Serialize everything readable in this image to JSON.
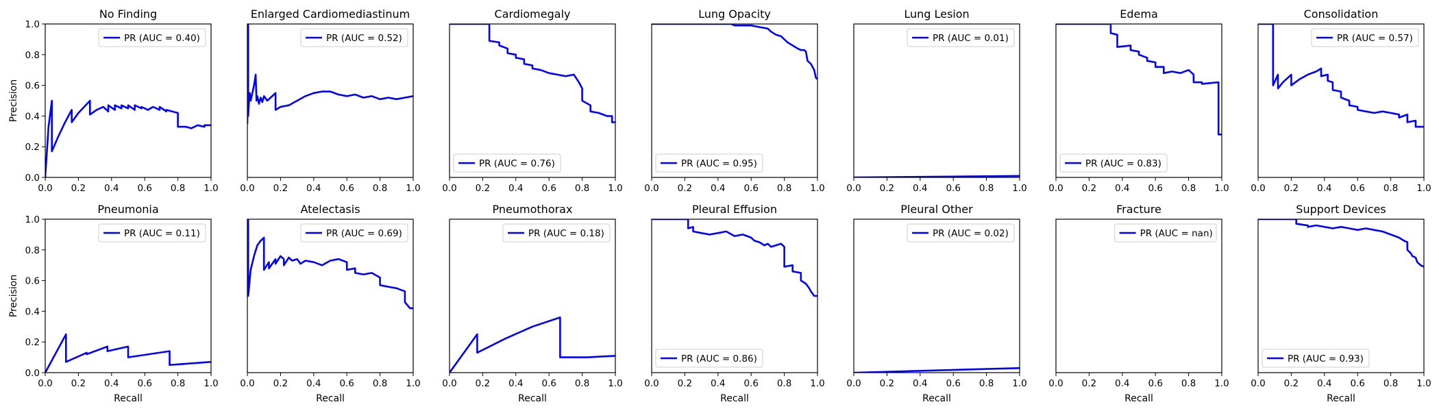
{
  "chart_data": [
    {
      "type": "line",
      "title": "No Finding",
      "xlabel": "",
      "ylabel": "Precision",
      "xlim": [
        0,
        1
      ],
      "ylim": [
        0,
        1
      ],
      "legend": "upper right",
      "series": [
        {
          "name": "PR (AUC = 0.40)",
          "x": [
            0,
            0.02,
            0.04,
            0.04,
            0.08,
            0.12,
            0.16,
            0.16,
            0.2,
            0.27,
            0.27,
            0.31,
            0.35,
            0.38,
            0.38,
            0.42,
            0.42,
            0.46,
            0.46,
            0.5,
            0.5,
            0.54,
            0.54,
            0.58,
            0.58,
            0.62,
            0.65,
            0.69,
            0.69,
            0.73,
            0.73,
            0.8,
            0.8,
            0.85,
            0.88,
            0.92,
            0.96,
            0.96,
            1
          ],
          "y": [
            0,
            0.33,
            0.5,
            0.17,
            0.27,
            0.36,
            0.44,
            0.36,
            0.42,
            0.5,
            0.41,
            0.44,
            0.46,
            0.43,
            0.47,
            0.44,
            0.47,
            0.45,
            0.47,
            0.45,
            0.47,
            0.44,
            0.47,
            0.45,
            0.46,
            0.44,
            0.46,
            0.44,
            0.46,
            0.43,
            0.44,
            0.42,
            0.33,
            0.33,
            0.32,
            0.34,
            0.33,
            0.34,
            0.34
          ]
        }
      ]
    },
    {
      "type": "line",
      "title": "Enlarged Cardiomediastinum",
      "xlabel": "",
      "ylabel": "",
      "xlim": [
        0,
        1
      ],
      "ylim": [
        0,
        1
      ],
      "legend": "upper right",
      "series": [
        {
          "name": "PR (AUC = 0.52)",
          "x": [
            0,
            0.005,
            0.005,
            0.01,
            0.015,
            0.02,
            0.03,
            0.04,
            0.05,
            0.055,
            0.06,
            0.07,
            0.08,
            0.09,
            0.1,
            0.12,
            0.14,
            0.17,
            0.17,
            0.2,
            0.25,
            0.3,
            0.35,
            0.4,
            0.45,
            0.5,
            0.55,
            0.6,
            0.65,
            0.7,
            0.75,
            0.8,
            0.85,
            0.9,
            0.95,
            1
          ],
          "y": [
            0.35,
            1,
            0.4,
            0.5,
            0.55,
            0.5,
            0.55,
            0.6,
            0.67,
            0.5,
            0.53,
            0.48,
            0.52,
            0.49,
            0.53,
            0.5,
            0.52,
            0.55,
            0.44,
            0.46,
            0.47,
            0.5,
            0.53,
            0.55,
            0.56,
            0.56,
            0.54,
            0.53,
            0.54,
            0.52,
            0.53,
            0.51,
            0.52,
            0.51,
            0.52,
            0.53
          ]
        }
      ]
    },
    {
      "type": "line",
      "title": "Cardiomegaly",
      "xlabel": "",
      "ylabel": "",
      "xlim": [
        0,
        1
      ],
      "ylim": [
        0,
        1
      ],
      "legend": "lower left",
      "series": [
        {
          "name": "PR (AUC = 0.76)",
          "x": [
            0,
            0.24,
            0.24,
            0.3,
            0.3,
            0.35,
            0.35,
            0.4,
            0.4,
            0.45,
            0.45,
            0.5,
            0.5,
            0.55,
            0.6,
            0.65,
            0.7,
            0.75,
            0.78,
            0.8,
            0.8,
            0.85,
            0.85,
            0.9,
            0.95,
            0.98,
            0.98,
            1
          ],
          "y": [
            1,
            1,
            0.89,
            0.88,
            0.86,
            0.84,
            0.81,
            0.8,
            0.78,
            0.77,
            0.74,
            0.73,
            0.71,
            0.7,
            0.68,
            0.67,
            0.66,
            0.67,
            0.62,
            0.58,
            0.5,
            0.47,
            0.43,
            0.42,
            0.4,
            0.4,
            0.36,
            0.36
          ]
        }
      ]
    },
    {
      "type": "line",
      "title": "Lung Opacity",
      "xlabel": "",
      "ylabel": "",
      "xlim": [
        0,
        1
      ],
      "ylim": [
        0,
        1
      ],
      "legend": "lower left",
      "series": [
        {
          "name": "PR (AUC = 0.95)",
          "x": [
            0,
            0.48,
            0.5,
            0.6,
            0.65,
            0.7,
            0.72,
            0.75,
            0.78,
            0.8,
            0.82,
            0.85,
            0.88,
            0.9,
            0.92,
            0.93,
            0.94,
            0.96,
            0.98,
            0.99,
            1
          ],
          "y": [
            1,
            1,
            0.99,
            0.99,
            0.98,
            0.97,
            0.95,
            0.93,
            0.92,
            0.9,
            0.88,
            0.86,
            0.84,
            0.83,
            0.83,
            0.82,
            0.76,
            0.74,
            0.7,
            0.65,
            0.64
          ]
        }
      ]
    },
    {
      "type": "line",
      "title": "Lung Lesion",
      "xlabel": "",
      "ylabel": "",
      "xlim": [
        0,
        1
      ],
      "ylim": [
        0,
        1
      ],
      "legend": "upper right",
      "series": [
        {
          "name": "PR (AUC = 0.01)",
          "x": [
            0,
            1
          ],
          "y": [
            0,
            0.01
          ]
        }
      ]
    },
    {
      "type": "line",
      "title": "Edema",
      "xlabel": "",
      "ylabel": "",
      "xlim": [
        0,
        1
      ],
      "ylim": [
        0,
        1
      ],
      "legend": "lower left",
      "series": [
        {
          "name": "PR (AUC = 0.83)",
          "x": [
            0,
            0.33,
            0.33,
            0.37,
            0.37,
            0.45,
            0.45,
            0.5,
            0.5,
            0.55,
            0.55,
            0.6,
            0.6,
            0.65,
            0.65,
            0.7,
            0.75,
            0.8,
            0.83,
            0.83,
            0.88,
            0.88,
            0.98,
            0.98,
            1
          ],
          "y": [
            1,
            1,
            0.94,
            0.93,
            0.85,
            0.86,
            0.83,
            0.82,
            0.8,
            0.78,
            0.76,
            0.75,
            0.72,
            0.72,
            0.68,
            0.69,
            0.68,
            0.7,
            0.67,
            0.62,
            0.62,
            0.61,
            0.62,
            0.28,
            0.28
          ]
        }
      ]
    },
    {
      "type": "line",
      "title": "Consolidation",
      "xlabel": "",
      "ylabel": "",
      "xlim": [
        0,
        1
      ],
      "ylim": [
        0,
        1
      ],
      "legend": "upper right",
      "series": [
        {
          "name": "PR (AUC = 0.57)",
          "x": [
            0,
            0.09,
            0.09,
            0.12,
            0.12,
            0.15,
            0.2,
            0.2,
            0.25,
            0.3,
            0.35,
            0.38,
            0.38,
            0.42,
            0.42,
            0.45,
            0.45,
            0.5,
            0.5,
            0.55,
            0.55,
            0.6,
            0.6,
            0.65,
            0.7,
            0.75,
            0.8,
            0.85,
            0.85,
            0.9,
            0.9,
            0.95,
            0.95,
            1
          ],
          "y": [
            1,
            1,
            0.6,
            0.67,
            0.58,
            0.62,
            0.67,
            0.6,
            0.64,
            0.67,
            0.69,
            0.71,
            0.66,
            0.67,
            0.63,
            0.62,
            0.57,
            0.56,
            0.52,
            0.5,
            0.47,
            0.46,
            0.44,
            0.43,
            0.42,
            0.43,
            0.42,
            0.41,
            0.39,
            0.41,
            0.36,
            0.37,
            0.33,
            0.33
          ]
        }
      ]
    },
    {
      "type": "line",
      "title": "Pneumonia",
      "xlabel": "Recall",
      "ylabel": "Precision",
      "xlim": [
        0,
        1
      ],
      "ylim": [
        0,
        1
      ],
      "legend": "upper right",
      "series": [
        {
          "name": "PR (AUC = 0.11)",
          "x": [
            0,
            0.125,
            0.125,
            0.25,
            0.25,
            0.375,
            0.375,
            0.5,
            0.5,
            0.625,
            0.75,
            0.75,
            0.875,
            1
          ],
          "y": [
            0,
            0.25,
            0.07,
            0.13,
            0.12,
            0.17,
            0.14,
            0.17,
            0.1,
            0.12,
            0.14,
            0.05,
            0.06,
            0.07
          ]
        }
      ]
    },
    {
      "type": "line",
      "title": "Atelectasis",
      "xlabel": "Recall",
      "ylabel": "",
      "xlim": [
        0,
        1
      ],
      "ylim": [
        0,
        1
      ],
      "legend": "upper right",
      "series": [
        {
          "name": "PR (AUC = 0.69)",
          "x": [
            0,
            0.005,
            0.005,
            0.02,
            0.04,
            0.06,
            0.08,
            0.1,
            0.1,
            0.13,
            0.13,
            0.17,
            0.17,
            0.2,
            0.22,
            0.22,
            0.25,
            0.27,
            0.3,
            0.32,
            0.35,
            0.4,
            0.45,
            0.5,
            0.55,
            0.6,
            0.6,
            0.65,
            0.65,
            0.7,
            0.75,
            0.8,
            0.8,
            0.85,
            0.9,
            0.95,
            0.95,
            0.98,
            1
          ],
          "y": [
            0.5,
            1,
            0.5,
            0.67,
            0.76,
            0.83,
            0.86,
            0.88,
            0.67,
            0.72,
            0.68,
            0.74,
            0.71,
            0.76,
            0.74,
            0.7,
            0.75,
            0.73,
            0.74,
            0.71,
            0.73,
            0.72,
            0.7,
            0.73,
            0.74,
            0.72,
            0.67,
            0.68,
            0.65,
            0.64,
            0.65,
            0.62,
            0.57,
            0.56,
            0.55,
            0.53,
            0.46,
            0.42,
            0.42
          ]
        }
      ]
    },
    {
      "type": "line",
      "title": "Pneumothorax",
      "xlabel": "Recall",
      "ylabel": "",
      "xlim": [
        0,
        1
      ],
      "ylim": [
        0,
        1
      ],
      "legend": "upper right",
      "series": [
        {
          "name": "PR (AUC = 0.18)",
          "x": [
            0,
            0.167,
            0.167,
            0.333,
            0.5,
            0.667,
            0.667,
            0.833,
            1
          ],
          "y": [
            0,
            0.25,
            0.13,
            0.22,
            0.3,
            0.36,
            0.1,
            0.1,
            0.11
          ]
        }
      ]
    },
    {
      "type": "line",
      "title": "Pleural Effusion",
      "xlabel": "Recall",
      "ylabel": "",
      "xlim": [
        0,
        1
      ],
      "ylim": [
        0,
        1
      ],
      "legend": "lower left",
      "series": [
        {
          "name": "PR (AUC = 0.86)",
          "x": [
            0,
            0.22,
            0.22,
            0.25,
            0.25,
            0.3,
            0.35,
            0.4,
            0.45,
            0.5,
            0.55,
            0.6,
            0.62,
            0.65,
            0.68,
            0.7,
            0.72,
            0.75,
            0.78,
            0.8,
            0.8,
            0.85,
            0.85,
            0.9,
            0.9,
            0.93,
            0.95,
            0.96,
            0.98,
            1
          ],
          "y": [
            1,
            1,
            0.94,
            0.95,
            0.92,
            0.91,
            0.9,
            0.91,
            0.92,
            0.89,
            0.9,
            0.88,
            0.86,
            0.85,
            0.83,
            0.84,
            0.82,
            0.83,
            0.84,
            0.82,
            0.69,
            0.7,
            0.66,
            0.65,
            0.6,
            0.58,
            0.55,
            0.53,
            0.5,
            0.5
          ]
        }
      ]
    },
    {
      "type": "line",
      "title": "Pleural Other",
      "xlabel": "Recall",
      "ylabel": "",
      "xlim": [
        0,
        1
      ],
      "ylim": [
        0,
        1
      ],
      "legend": "upper right",
      "series": [
        {
          "name": "PR (AUC = 0.02)",
          "x": [
            0,
            0.01,
            1
          ],
          "y": [
            0,
            0,
            0.03
          ]
        }
      ]
    },
    {
      "type": "line",
      "title": "Fracture",
      "xlabel": "Recall",
      "ylabel": "",
      "xlim": [
        0,
        1
      ],
      "ylim": [
        0,
        1
      ],
      "legend": "upper right",
      "series": [
        {
          "name": "PR (AUC = nan)",
          "x": [],
          "y": []
        }
      ]
    },
    {
      "type": "line",
      "title": "Support Devices",
      "xlabel": "Recall",
      "ylabel": "",
      "xlim": [
        0,
        1
      ],
      "ylim": [
        0,
        1
      ],
      "legend": "lower left",
      "series": [
        {
          "name": "PR (AUC = 0.93)",
          "x": [
            0,
            0.23,
            0.23,
            0.3,
            0.3,
            0.35,
            0.4,
            0.45,
            0.5,
            0.55,
            0.6,
            0.65,
            0.7,
            0.75,
            0.8,
            0.85,
            0.88,
            0.9,
            0.9,
            0.92,
            0.93,
            0.95,
            0.96,
            0.98,
            1
          ],
          "y": [
            1,
            1,
            0.97,
            0.96,
            0.95,
            0.96,
            0.95,
            0.94,
            0.95,
            0.94,
            0.93,
            0.94,
            0.93,
            0.92,
            0.9,
            0.88,
            0.86,
            0.85,
            0.8,
            0.78,
            0.76,
            0.75,
            0.72,
            0.7,
            0.69
          ]
        }
      ]
    }
  ],
  "tick_labels": [
    "0.0",
    "0.2",
    "0.4",
    "0.6",
    "0.8",
    "1.0"
  ],
  "colors": {
    "line": "#0000ff",
    "axes": "#000000",
    "background": "#ffffff"
  }
}
